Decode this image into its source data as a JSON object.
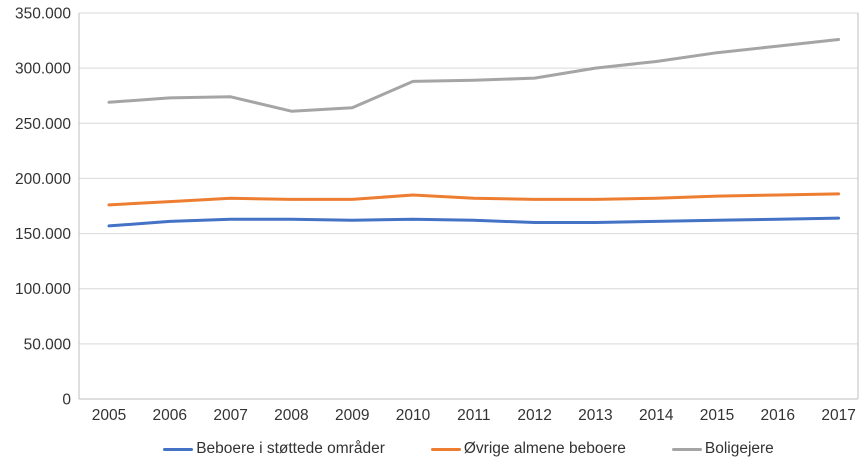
{
  "chart_data": {
    "type": "line",
    "title": "",
    "xlabel": "",
    "ylabel": "",
    "x": [
      2005,
      2006,
      2007,
      2008,
      2009,
      2010,
      2011,
      2012,
      2013,
      2014,
      2015,
      2016,
      2017
    ],
    "series": [
      {
        "name": "Beboere i støttede områder",
        "color": "#4472C4",
        "values": [
          157000,
          161000,
          163000,
          163000,
          162000,
          163000,
          162000,
          160000,
          160000,
          161000,
          162000,
          163000,
          164000
        ]
      },
      {
        "name": "Øvrige almene beboere",
        "color": "#ED7D31",
        "values": [
          176000,
          179000,
          182000,
          181000,
          181000,
          185000,
          182000,
          181000,
          181000,
          182000,
          184000,
          185000,
          186000
        ]
      },
      {
        "name": "Boligejere",
        "color": "#A5A5A5",
        "values": [
          269000,
          273000,
          274000,
          261000,
          264000,
          288000,
          289000,
          291000,
          300000,
          306000,
          314000,
          320000,
          326000
        ]
      }
    ],
    "ylim": [
      0,
      350000
    ],
    "ytick_step": 50000,
    "ytick_labels": [
      "0",
      "50.000",
      "100.000",
      "150.000",
      "200.000",
      "250.000",
      "300.000",
      "350.000"
    ],
    "grid": true,
    "legend_position": "bottom",
    "colors": {
      "gridline": "#D9D9D9",
      "axis_border": "#BFBFBF",
      "tick_text": "#333333"
    }
  }
}
